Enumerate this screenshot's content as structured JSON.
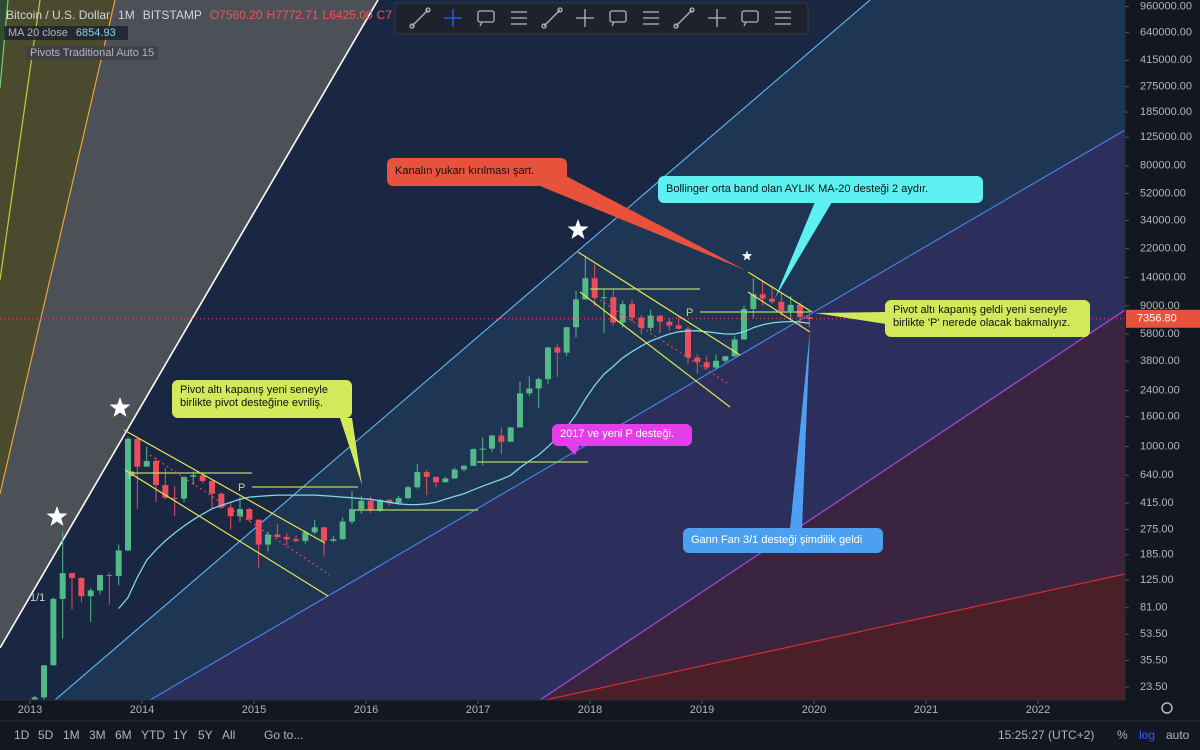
{
  "header": {
    "title": "Bitcoin / U.S. Dollar",
    "interval": "1M",
    "exchange": "BITSTAMP",
    "ohlc": [
      "O7560.20",
      "H7772.71",
      "L6425.00",
      "C7"
    ],
    "pivots": "Pivots Traditional Auto 15"
  },
  "chart_data": {
    "type": "candlestick",
    "log_scale": true,
    "categories": [
      null,
      null,
      null,
      null,
      null,
      null,
      null,
      null,
      null,
      null,
      null,
      null,
      null,
      null,
      null,
      null,
      null,
      null,
      null,
      null,
      null,
      null,
      null,
      null,
      null,
      null,
      null,
      null,
      null,
      null,
      null,
      null,
      null,
      null,
      null,
      null,
      null,
      null,
      null,
      null,
      null,
      null,
      null,
      null,
      null,
      null,
      null,
      null,
      null,
      null,
      null,
      null,
      null,
      null,
      null,
      null,
      null,
      null,
      null,
      null,
      null,
      null,
      null,
      null,
      null,
      null,
      null,
      null,
      null,
      null,
      null,
      null,
      null,
      null,
      null,
      null,
      null,
      null,
      null,
      null,
      null,
      null,
      null,
      null
    ],
    "open": [
      13.5,
      20,
      33,
      93,
      139,
      129,
      97,
      106,
      135,
      133,
      198,
      1130,
      732,
      800,
      550,
      450,
      445,
      625,
      640,
      585,
      480,
      387,
      338,
      378,
      320,
      217,
      254,
      244,
      236,
      230,
      263,
      284,
      230,
      236,
      311,
      378,
      430,
      368,
      437,
      416,
      448,
      531,
      673,
      624,
      574,
      609,
      700,
      742,
      963,
      970,
      1190,
      1080,
      1350,
      2300,
      2480,
      2870,
      4700,
      4340,
      6450,
      9950,
      13850,
      10200,
      10300,
      6930,
      9240,
      7500,
      6390,
      7730,
      7030,
      6630,
      6300,
      4020,
      3740,
      3440,
      3820,
      4100,
      5320,
      8570,
      10800,
      10080,
      9590,
      8300,
      9150,
      7560.2
    ],
    "high": [
      20.5,
      33,
      95,
      266,
      140,
      130,
      110,
      135,
      140,
      217,
      1163,
      1150,
      1000,
      840,
      715,
      540,
      630,
      680,
      655,
      600,
      490,
      420,
      455,
      385,
      322,
      265,
      300,
      260,
      250,
      270,
      320,
      285,
      250,
      330,
      500,
      465,
      460,
      440,
      440,
      465,
      545,
      765,
      700,
      625,
      625,
      720,
      755,
      975,
      1150,
      1200,
      1350,
      1360,
      2770,
      3000,
      2930,
      4750,
      5000,
      6470,
      11400,
      19666,
      17170,
      11780,
      11700,
      9760,
      10000,
      7780,
      8500,
      7760,
      7400,
      7680,
      6560,
      4230,
      4090,
      4200,
      4130,
      5600,
      9080,
      13880,
      13200,
      12320,
      10930,
      10500,
      9500,
      7772.71
    ],
    "low": [
      13,
      19,
      33,
      50,
      79,
      88,
      65,
      100,
      85,
      115,
      196,
      380,
      730,
      420,
      440,
      340,
      420,
      550,
      565,
      380,
      380,
      275,
      310,
      310,
      152,
      195,
      240,
      215,
      225,
      220,
      255,
      180,
      225,
      235,
      300,
      350,
      355,
      360,
      400,
      410,
      440,
      520,
      470,
      530,
      570,
      605,
      680,
      740,
      750,
      920,
      890,
      1080,
      1350,
      2200,
      1830,
      2670,
      2970,
      4100,
      5500,
      9900,
      9030,
      5880,
      6600,
      6440,
      7040,
      5760,
      6070,
      5880,
      6110,
      6200,
      3650,
      3120,
      3350,
      3390,
      3700,
      4070,
      5320,
      7470,
      9050,
      9300,
      7720,
      7300,
      6500,
      6425
    ],
    "close": [
      20,
      33,
      93,
      139,
      129,
      97,
      106,
      135,
      133,
      198,
      1130,
      732,
      800,
      550,
      450,
      445,
      625,
      640,
      585,
      480,
      387,
      338,
      378,
      320,
      217,
      254,
      244,
      236,
      230,
      263,
      284,
      230,
      236,
      311,
      378,
      430,
      368,
      437,
      416,
      448,
      531,
      673,
      624,
      574,
      609,
      700,
      742,
      963,
      970,
      1190,
      1080,
      1350,
      2300,
      2480,
      2870,
      4700,
      4340,
      6450,
      9950,
      13850,
      10200,
      10300,
      6930,
      9240,
      7500,
      6390,
      7730,
      7030,
      6630,
      6300,
      4020,
      3740,
      3440,
      3820,
      4100,
      5320,
      8570,
      10800,
      10080,
      9590,
      8300,
      9150,
      7560.2,
      7356.8
    ],
    "up_color": "#53b987",
    "down_color": "#eb4d5c",
    "ma": {
      "name": "MA 20 close",
      "color": "#7fd6ea",
      "values": [
        null,
        null,
        null,
        null,
        null,
        null,
        null,
        null,
        null,
        80,
        95,
        130,
        170,
        200,
        230,
        260,
        290,
        320,
        350,
        380,
        400,
        420,
        440,
        455,
        460,
        465,
        470,
        470,
        470,
        470,
        470,
        465,
        460,
        455,
        450,
        445,
        440,
        430,
        420,
        410,
        405,
        405,
        410,
        420,
        440,
        460,
        480,
        510,
        540,
        570,
        600,
        640,
        720,
        800,
        880,
        1000,
        1150,
        1350,
        1650,
        2100,
        2600,
        3100,
        3500,
        4000,
        4400,
        4800,
        5200,
        5500,
        5800,
        6000,
        6100,
        6100,
        6000,
        5900,
        5800,
        5800,
        6000,
        6400,
        6700,
        6900,
        7000,
        7050,
        7000,
        6854.93
      ]
    },
    "price_tag": {
      "value": 7356.8,
      "label": "7356.80"
    },
    "ylim": [
      19.2,
      1064000
    ],
    "yticks": [
      {
        "value": 960000,
        "label": "960000.00"
      },
      {
        "value": 640000,
        "label": "640000.00"
      },
      {
        "value": 415000,
        "label": "415000.00"
      },
      {
        "value": 275000,
        "label": "275000.00"
      },
      {
        "value": 185000,
        "label": "185000.00"
      },
      {
        "value": 125000,
        "label": "125000.00"
      },
      {
        "value": 80000,
        "label": "80000.00"
      },
      {
        "value": 52000,
        "label": "52000.00"
      },
      {
        "value": 34000,
        "label": "34000.00"
      },
      {
        "value": 22000,
        "label": "22000.00"
      },
      {
        "value": 14000,
        "label": "14000.00"
      },
      {
        "value": 9000,
        "label": "9000.00"
      },
      {
        "value": 5800,
        "label": "5800.00"
      },
      {
        "value": 3800,
        "label": "3800.00"
      },
      {
        "value": 2400,
        "label": "2400.00"
      },
      {
        "value": 1600,
        "label": "1600.00"
      },
      {
        "value": 1000,
        "label": "1000.00"
      },
      {
        "value": 640,
        "label": "640.00"
      },
      {
        "value": 415,
        "label": "415.00"
      },
      {
        "value": 275,
        "label": "275.00"
      },
      {
        "value": 185,
        "label": "185.00"
      },
      {
        "value": 125,
        "label": "125.00"
      },
      {
        "value": 81,
        "label": "81.00"
      },
      {
        "value": 53.5,
        "label": "53.50"
      },
      {
        "value": 35.5,
        "label": "35.50"
      },
      {
        "value": 23.5,
        "label": "23.50"
      }
    ],
    "xlim": [
      2012.732,
      2022.777
    ],
    "xticks": [
      2013,
      2014,
      2015,
      2016,
      2017,
      2018,
      2019,
      2020,
      2021,
      2022
    ],
    "annotations": [
      "Pivot altı kapanış yeni seneyle birlikte pivot desteğine evriliş.",
      "Kanalın yukarı kırılması şart.",
      "Bollinger orta band olan AYLIK MA-20 desteği 2 aydır.",
      "2017 ve yeni P desteği.",
      "Pivot altı kapanış geldi yeni seneyle birlikte 'P' nerede olacak bakmalıyız.",
      "Gann Fan 3/1 desteği şimdilik geldi"
    ],
    "pivot_labels": [
      "P",
      "P",
      "P"
    ],
    "fan_label": "1/1"
  },
  "bottom_bar": {
    "ranges": [
      "1D",
      "5D",
      "1M",
      "3M",
      "6M",
      "YTD",
      "1Y",
      "5Y",
      "All"
    ],
    "goto": "Go to...",
    "time": "15:25:27 (UTC+2)",
    "percent": "%",
    "log": "log",
    "auto": "auto"
  }
}
